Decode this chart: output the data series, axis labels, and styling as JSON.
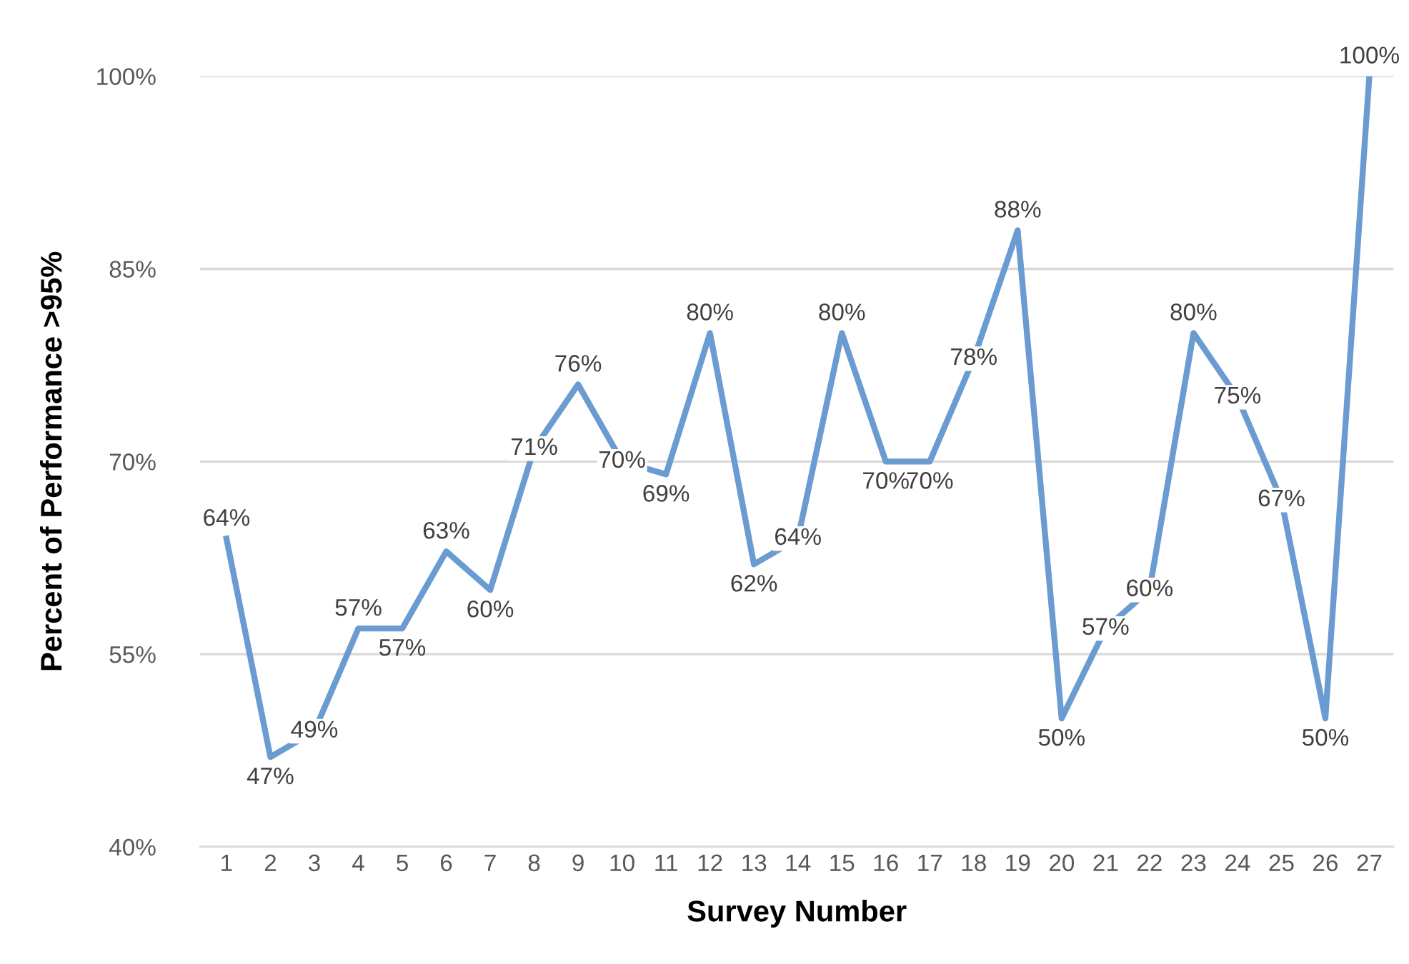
{
  "chart_data": {
    "type": "line",
    "xlabel": "Survey Number",
    "ylabel": "Percent of Performance >95%",
    "categories": [
      "1",
      "2",
      "3",
      "4",
      "5",
      "6",
      "7",
      "8",
      "9",
      "10",
      "11",
      "12",
      "13",
      "14",
      "15",
      "16",
      "17",
      "18",
      "19",
      "20",
      "21",
      "22",
      "23",
      "24",
      "25",
      "26",
      "27"
    ],
    "series": [
      {
        "color": "#6a9bd1",
        "values": [
          64,
          47,
          49,
          57,
          57,
          63,
          60,
          71,
          76,
          70,
          69,
          80,
          62,
          64,
          80,
          70,
          70,
          78,
          88,
          50,
          57,
          60,
          80,
          75,
          67,
          50,
          100
        ],
        "value_labels": [
          "64%",
          "47%",
          "49%",
          "57%",
          "57%",
          "63%",
          "60%",
          "71%",
          "76%",
          "70%",
          "69%",
          "80%",
          "62%",
          "64%",
          "80%",
          "70%",
          "70%",
          "78%",
          "88%",
          "50%",
          "57%",
          "60%",
          "80%",
          "75%",
          "67%",
          "50%",
          "100%"
        ]
      }
    ],
    "ylim": [
      40,
      100
    ],
    "yticks": [
      {
        "value": 40,
        "label": "40%"
      },
      {
        "value": 55,
        "label": "55%"
      },
      {
        "value": 70,
        "label": "70%"
      },
      {
        "value": 85,
        "label": "85%"
      },
      {
        "value": 100,
        "label": "100%"
      }
    ],
    "grid": "y",
    "marker": "none",
    "line_style": "solid"
  }
}
